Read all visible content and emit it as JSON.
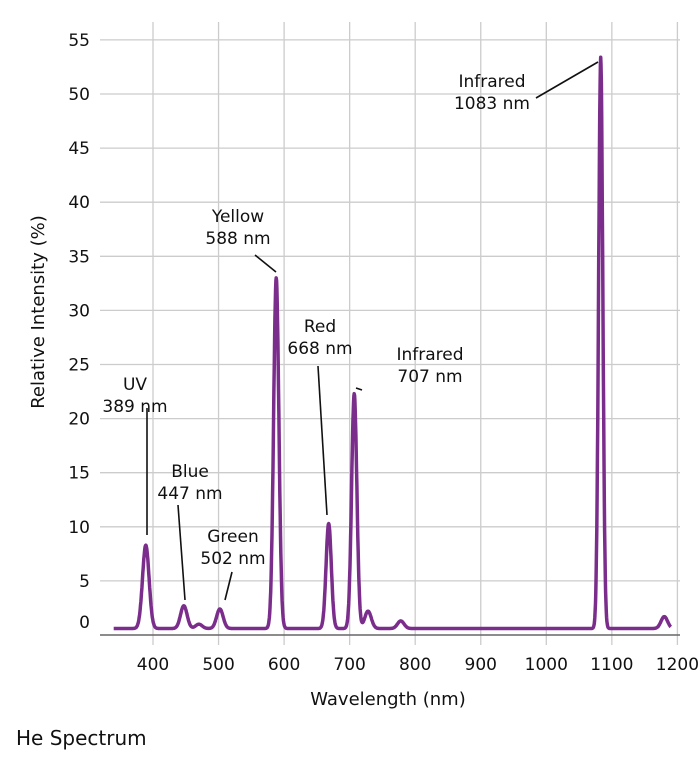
{
  "caption": "He Spectrum",
  "chart_data": {
    "type": "line",
    "xlabel": "Wavelength (nm)",
    "ylabel": "Relative Intensity (%)",
    "xlim": [
      335,
      1195
    ],
    "ylim": [
      0,
      56
    ],
    "xticks": [
      400,
      500,
      600,
      700,
      800,
      900,
      1000,
      1100,
      1200
    ],
    "yticks": [
      0,
      5,
      10,
      15,
      20,
      25,
      30,
      35,
      40,
      45,
      50,
      55
    ],
    "grid": true,
    "line_color": "#7b2d8b",
    "baseline": 0.6,
    "peaks": [
      {
        "x": 389,
        "y": 8.3
      },
      {
        "x": 447,
        "y": 2.7
      },
      {
        "x": 470,
        "y": 1.0
      },
      {
        "x": 502,
        "y": 2.4
      },
      {
        "x": 588,
        "y": 33.0
      },
      {
        "x": 668,
        "y": 10.3
      },
      {
        "x": 707,
        "y": 22.3
      },
      {
        "x": 728,
        "y": 2.2
      },
      {
        "x": 778,
        "y": 1.3
      },
      {
        "x": 1083,
        "y": 53.4
      },
      {
        "x": 1180,
        "y": 1.7
      }
    ],
    "annotations": [
      {
        "line1": "UV",
        "line2": "389 nm",
        "x": 389,
        "y": 8.3
      },
      {
        "line1": "Blue",
        "line2": "447 nm",
        "x": 447,
        "y": 2.7
      },
      {
        "line1": "Green",
        "line2": "502 nm",
        "x": 502,
        "y": 2.4
      },
      {
        "line1": "Yellow",
        "line2": "588 nm",
        "x": 588,
        "y": 33.0
      },
      {
        "line1": "Red",
        "line2": "668 nm",
        "x": 668,
        "y": 10.3
      },
      {
        "line1": "Infrared",
        "line2": "707 nm",
        "x": 707,
        "y": 22.3
      },
      {
        "line1": "Infrared",
        "line2": "1083 nm",
        "x": 1083,
        "y": 53.4
      }
    ]
  }
}
